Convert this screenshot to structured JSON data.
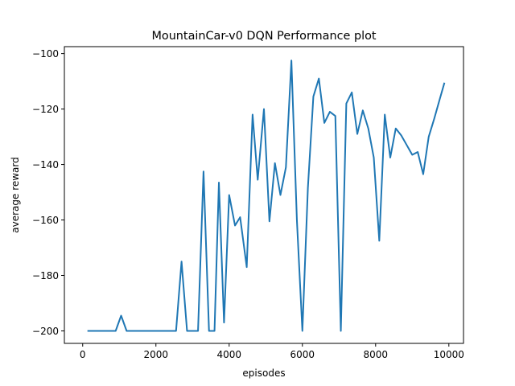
{
  "chart_data": {
    "type": "line",
    "title": "MountainCar-v0 DQN Performance plot",
    "xlabel": "episodes",
    "ylabel": "average reward",
    "xlim": [
      -500,
      10400
    ],
    "ylim": [
      -204.5,
      -97.5
    ],
    "xticks": [
      0,
      2000,
      4000,
      6000,
      8000,
      10000
    ],
    "xtick_labels": [
      "0",
      "2000",
      "4000",
      "6000",
      "8000",
      "10000"
    ],
    "yticks": [
      -200,
      -180,
      -160,
      -140,
      -120,
      -100
    ],
    "ytick_labels": [
      "−200",
      "−180",
      "−160",
      "−140",
      "−120",
      "−100"
    ],
    "grid": false,
    "legend": false,
    "series": [
      {
        "color": "#1f77b4",
        "x": [
          130,
          300,
          500,
          700,
          900,
          1050,
          1200,
          1400,
          1600,
          1800,
          2000,
          2200,
          2400,
          2550,
          2700,
          2850,
          3000,
          3150,
          3300,
          3450,
          3600,
          3720,
          3860,
          4000,
          4160,
          4300,
          4480,
          4640,
          4780,
          4950,
          5100,
          5250,
          5400,
          5550,
          5700,
          5850,
          6000,
          6150,
          6300,
          6450,
          6600,
          6750,
          6900,
          7050,
          7200,
          7350,
          7500,
          7650,
          7800,
          7950,
          8100,
          8250,
          8400,
          8550,
          8700,
          8850,
          9000,
          9150,
          9300,
          9450,
          9600,
          9750,
          9880
        ],
        "y": [
          -200,
          -200,
          -200,
          -200,
          -200,
          -194.5,
          -200,
          -200,
          -200,
          -200,
          -200,
          -200,
          -200,
          -200,
          -175,
          -200,
          -200,
          -200,
          -142.5,
          -200,
          -200,
          -146.5,
          -197,
          -151,
          -162,
          -159,
          -177,
          -122,
          -145.5,
          -120,
          -160.5,
          -139.5,
          -151,
          -141,
          -102.5,
          -160,
          -200,
          -148.5,
          -115.5,
          -109,
          -125,
          -121,
          -122.5,
          -200,
          -118,
          -114,
          -129,
          -120.5,
          -127,
          -137.5,
          -167.5,
          -122,
          -137.5,
          -127,
          -129.5,
          -133,
          -136.5,
          -135.5,
          -143.5,
          -130,
          -123.5,
          -116.5,
          -110.5
        ]
      }
    ]
  }
}
